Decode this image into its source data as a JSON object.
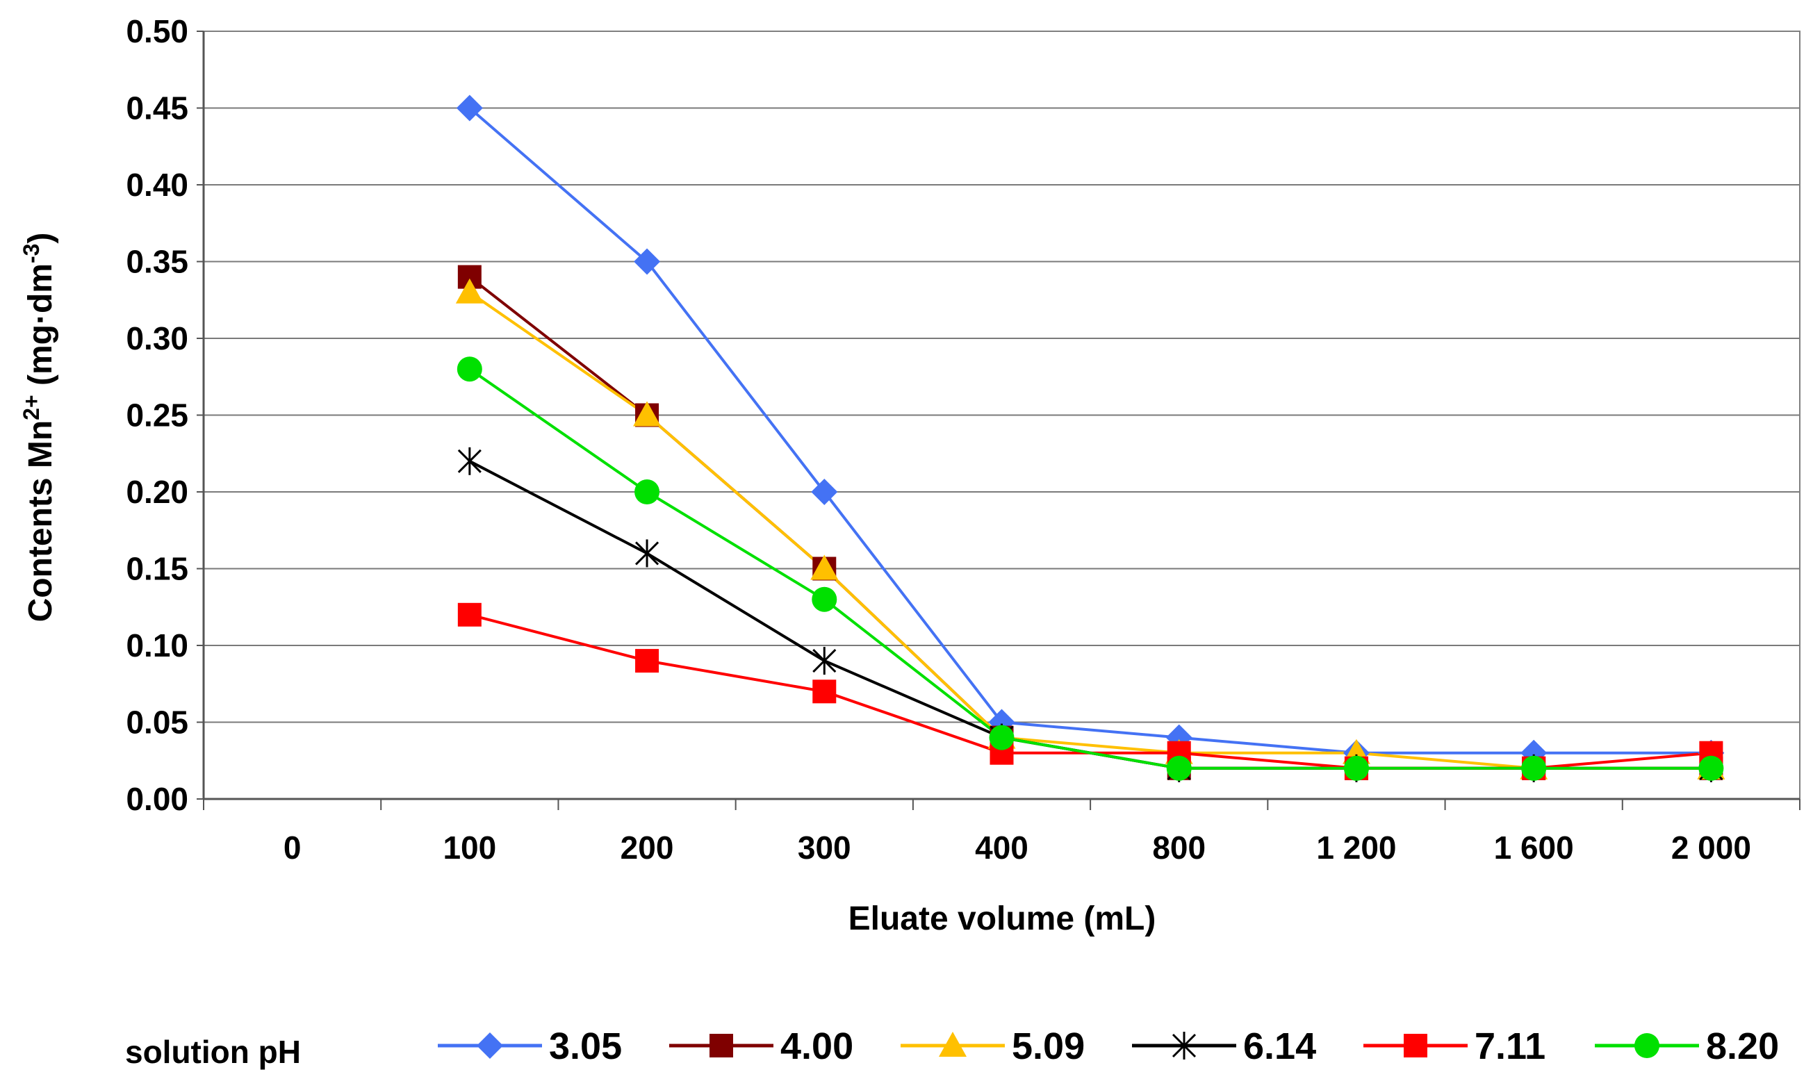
{
  "chart_data": {
    "type": "line",
    "title": "",
    "xlabel": "Eluate volume (mL)",
    "ylabel_prefix": "Contents Mn",
    "ylabel_sup1": "2+",
    "ylabel_mid": " (mg·dm",
    "ylabel_sup2": "-3",
    "ylabel_suffix": ")",
    "categories": [
      "0",
      "100",
      "200",
      "300",
      "400",
      "800",
      "1 200",
      "1 600",
      "2 000"
    ],
    "ylim": [
      0,
      0.5
    ],
    "yticks": [
      "0.00",
      "0.05",
      "0.10",
      "0.15",
      "0.20",
      "0.25",
      "0.30",
      "0.35",
      "0.40",
      "0.45",
      "0.50"
    ],
    "grid": true,
    "legend_position": "bottom",
    "legend_title": "solution pH",
    "series": [
      {
        "name": "3.05",
        "color": "#4472F4",
        "marker": "diamond",
        "values": [
          null,
          0.45,
          0.35,
          0.2,
          0.05,
          0.04,
          0.03,
          0.03,
          0.03
        ]
      },
      {
        "name": "4.00",
        "color": "#7F0000",
        "marker": "square",
        "values": [
          null,
          0.34,
          0.25,
          0.15,
          0.04,
          0.02,
          0.02,
          0.02,
          0.02
        ]
      },
      {
        "name": "5.09",
        "color": "#FFC000",
        "marker": "triangle",
        "values": [
          null,
          0.33,
          0.25,
          0.15,
          0.04,
          0.03,
          0.03,
          0.02,
          0.02
        ]
      },
      {
        "name": "6.14",
        "color": "#000000",
        "marker": "asterisk",
        "values": [
          null,
          0.22,
          0.16,
          0.09,
          0.04,
          0.02,
          0.02,
          0.02,
          0.02
        ]
      },
      {
        "name": "7.11",
        "color": "#FF0000",
        "marker": "square",
        "values": [
          null,
          0.12,
          0.09,
          0.07,
          0.03,
          0.03,
          0.02,
          0.02,
          0.03
        ]
      },
      {
        "name": "8.20",
        "color": "#00E000",
        "marker": "circle",
        "values": [
          null,
          0.28,
          0.2,
          0.13,
          0.04,
          0.02,
          0.02,
          0.02,
          0.02
        ]
      }
    ]
  }
}
